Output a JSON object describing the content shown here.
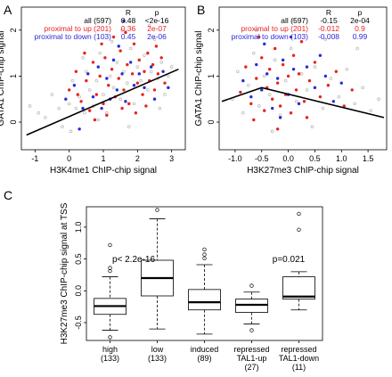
{
  "chart_data": [
    {
      "panel": "A",
      "type": "scatter",
      "xlabel": "H3K4me1 ChIP-chip signal",
      "ylabel": "GATA1 ChIP-chip signal",
      "xlim": [
        -1.4,
        3.4
      ],
      "ylim": [
        -0.6,
        2.5
      ],
      "xticks": [
        "-1",
        "0",
        "1",
        "2",
        "3"
      ],
      "yticks": [
        "0",
        "1",
        "2"
      ],
      "stats_header": {
        "r": "R",
        "p": "p"
      },
      "stats": [
        {
          "label": "all (597)",
          "r": "0.48",
          "p": "<2e-16",
          "color": "#000000"
        },
        {
          "label": "proximal to up (201)",
          "r": "0.36",
          "p": "2e-07",
          "color": "#e8231f"
        },
        {
          "label": "proximal to down (103)",
          "r": "0.45",
          "p": "2e-06",
          "color": "#2a2ad8"
        }
      ],
      "fit_line": {
        "x": [
          -1.25,
          3.2
        ],
        "y": [
          -0.28,
          1.15
        ]
      },
      "series": [
        {
          "label": "all",
          "color": "#bdbdbd",
          "points": [
            [
              -1.15,
              0.35
            ],
            [
              -0.9,
              0.2
            ],
            [
              -0.7,
              0.1
            ],
            [
              -0.5,
              0.6
            ],
            [
              -0.3,
              0.3
            ],
            [
              -0.2,
              -0.1
            ],
            [
              0.0,
              0.4
            ],
            [
              0.1,
              0.9
            ],
            [
              0.2,
              0.3
            ],
            [
              0.3,
              0.55
            ],
            [
              0.45,
              0.2
            ],
            [
              0.5,
              1.1
            ],
            [
              0.6,
              0.7
            ],
            [
              0.7,
              0.35
            ],
            [
              0.8,
              0.9
            ],
            [
              0.9,
              1.5
            ],
            [
              1.0,
              0.6
            ],
            [
              1.1,
              0.2
            ],
            [
              1.2,
              1.0
            ],
            [
              1.3,
              0.75
            ],
            [
              1.4,
              1.3
            ],
            [
              1.5,
              0.5
            ],
            [
              1.6,
              1.1
            ],
            [
              1.7,
              0.85
            ],
            [
              1.8,
              1.6
            ],
            [
              1.9,
              0.4
            ],
            [
              2.0,
              1.2
            ],
            [
              2.1,
              0.9
            ],
            [
              2.2,
              1.45
            ],
            [
              2.3,
              0.7
            ],
            [
              2.4,
              1.1
            ],
            [
              2.5,
              1.8
            ],
            [
              2.6,
              0.95
            ],
            [
              2.7,
              1.3
            ],
            [
              2.8,
              0.6
            ],
            [
              2.9,
              1.0
            ],
            [
              3.0,
              1.2
            ],
            [
              1.55,
              2.0
            ],
            [
              0.4,
              1.4
            ],
            [
              2.35,
              2.1
            ],
            [
              0.05,
              -0.2
            ],
            [
              1.75,
              -0.1
            ],
            [
              2.65,
              0.3
            ],
            [
              0.85,
              0.05
            ],
            [
              1.25,
              1.75
            ]
          ]
        },
        {
          "label": "proximal to up",
          "color": "#e8231f",
          "points": [
            [
              0.0,
              0.7
            ],
            [
              0.2,
              1.1
            ],
            [
              0.35,
              0.45
            ],
            [
              0.5,
              0.9
            ],
            [
              0.6,
              0.25
            ],
            [
              0.7,
              1.3
            ],
            [
              0.8,
              0.6
            ],
            [
              0.9,
              1.0
            ],
            [
              1.0,
              0.4
            ],
            [
              1.05,
              1.4
            ],
            [
              1.15,
              0.8
            ],
            [
              1.25,
              1.15
            ],
            [
              1.35,
              0.55
            ],
            [
              1.45,
              0.95
            ],
            [
              1.5,
              1.55
            ],
            [
              1.6,
              0.7
            ],
            [
              1.7,
              1.25
            ],
            [
              1.75,
              0.4
            ],
            [
              1.85,
              1.05
            ],
            [
              1.9,
              1.7
            ],
            [
              2.0,
              0.85
            ],
            [
              2.05,
              1.35
            ],
            [
              2.15,
              0.6
            ],
            [
              2.2,
              1.1
            ],
            [
              2.3,
              1.5
            ],
            [
              2.35,
              0.9
            ],
            [
              2.45,
              1.25
            ],
            [
              2.5,
              0.7
            ],
            [
              2.6,
              1.05
            ],
            [
              2.7,
              1.4
            ],
            [
              2.8,
              0.85
            ],
            [
              0.45,
              1.5
            ],
            [
              1.3,
              1.85
            ],
            [
              1.95,
              0.2
            ],
            [
              2.55,
              1.65
            ],
            [
              0.75,
              0.05
            ],
            [
              1.55,
              0.3
            ],
            [
              1.1,
              0.15
            ],
            [
              2.25,
              0.35
            ],
            [
              0.25,
              0.6
            ],
            [
              1.65,
              1.95
            ],
            [
              0.95,
              1.7
            ]
          ]
        },
        {
          "label": "proximal to down",
          "color": "#2a2ad8",
          "points": [
            [
              -0.1,
              0.5
            ],
            [
              0.15,
              0.8
            ],
            [
              0.4,
              0.3
            ],
            [
              0.55,
              1.05
            ],
            [
              0.7,
              0.55
            ],
            [
              0.85,
              1.2
            ],
            [
              0.95,
              0.3
            ],
            [
              1.1,
              0.95
            ],
            [
              1.2,
              0.5
            ],
            [
              1.3,
              1.35
            ],
            [
              1.4,
              0.7
            ],
            [
              1.55,
              1.05
            ],
            [
              1.65,
              0.45
            ],
            [
              1.8,
              1.3
            ],
            [
              1.9,
              0.8
            ],
            [
              2.05,
              1.05
            ],
            [
              2.2,
              0.75
            ],
            [
              2.4,
              1.2
            ],
            [
              2.5,
              0.5
            ],
            [
              2.75,
              1.1
            ],
            [
              2.9,
              0.75
            ],
            [
              1.6,
              2.2
            ],
            [
              0.3,
              -0.15
            ],
            [
              1.45,
              1.65
            ]
          ]
        }
      ]
    },
    {
      "panel": "B",
      "type": "scatter",
      "xlabel": "H3K27me3 ChIP-chip signal",
      "ylabel": "GATA1 ChIP-chip signal",
      "xlim": [
        -1.3,
        1.85
      ],
      "ylim": [
        -0.6,
        2.5
      ],
      "xticks": [
        "-1.0",
        "-0.5",
        "0.0",
        "0.5",
        "1.0",
        "1.5"
      ],
      "yticks": [
        "0",
        "1",
        "2"
      ],
      "stats_header": {
        "r": "R",
        "p": "p"
      },
      "stats": [
        {
          "label": "all (597)",
          "r": "-0.15",
          "p": "2e-04",
          "color": "#000000"
        },
        {
          "label": "proximal to up (201)",
          "r": "-0.012",
          "p": "0.9",
          "color": "#e8231f"
        },
        {
          "label": "proximal to down (103)",
          "r": "-0.008",
          "p": "0.99",
          "color": "#2a2ad8"
        }
      ],
      "fit_line": {
        "x": [
          -1.25,
          -0.5,
          1.8
        ],
        "y": [
          0.45,
          0.75,
          0.1
        ]
      },
      "series": [
        {
          "label": "all",
          "color": "#bdbdbd",
          "points": [
            [
              -1.05,
              0.5
            ],
            [
              -0.95,
              1.1
            ],
            [
              -0.85,
              0.2
            ],
            [
              -0.75,
              0.8
            ],
            [
              -0.65,
              1.5
            ],
            [
              -0.55,
              0.35
            ],
            [
              -0.45,
              1.0
            ],
            [
              -0.35,
              0.6
            ],
            [
              -0.25,
              1.35
            ],
            [
              -0.15,
              0.15
            ],
            [
              -0.05,
              0.9
            ],
            [
              0.05,
              1.6
            ],
            [
              0.15,
              0.45
            ],
            [
              0.25,
              1.05
            ],
            [
              0.35,
              0.7
            ],
            [
              0.5,
              1.2
            ],
            [
              0.65,
              0.3
            ],
            [
              0.8,
              0.95
            ],
            [
              0.95,
              0.55
            ],
            [
              1.1,
              1.15
            ],
            [
              1.25,
              0.4
            ],
            [
              1.4,
              0.75
            ],
            [
              1.55,
              0.25
            ],
            [
              1.7,
              0.5
            ],
            [
              -0.6,
              2.0
            ],
            [
              0.1,
              2.2
            ],
            [
              -0.3,
              -0.2
            ],
            [
              0.45,
              -0.1
            ],
            [
              1.3,
              1.6
            ],
            [
              0.7,
              1.8
            ]
          ]
        },
        {
          "label": "proximal to up",
          "color": "#e8231f",
          "points": [
            [
              -0.9,
              0.65
            ],
            [
              -0.8,
              1.2
            ],
            [
              -0.7,
              0.4
            ],
            [
              -0.6,
              0.95
            ],
            [
              -0.5,
              1.4
            ],
            [
              -0.45,
              0.25
            ],
            [
              -0.4,
              0.75
            ],
            [
              -0.35,
              1.15
            ],
            [
              -0.3,
              0.5
            ],
            [
              -0.25,
              1.6
            ],
            [
              -0.2,
              0.85
            ],
            [
              -0.15,
              0.35
            ],
            [
              -0.1,
              1.25
            ],
            [
              -0.05,
              0.6
            ],
            [
              0.0,
              1.0
            ],
            [
              0.05,
              0.2
            ],
            [
              0.1,
              1.45
            ],
            [
              0.15,
              0.7
            ],
            [
              0.2,
              1.05
            ],
            [
              0.3,
              0.45
            ],
            [
              0.4,
              0.9
            ],
            [
              0.5,
              1.3
            ],
            [
              0.6,
              0.55
            ],
            [
              0.75,
              0.8
            ],
            [
              0.9,
              1.1
            ],
            [
              1.05,
              0.35
            ],
            [
              1.2,
              0.7
            ],
            [
              -0.55,
              1.85
            ],
            [
              -0.2,
              -0.15
            ],
            [
              0.25,
              1.75
            ],
            [
              -0.65,
              0.05
            ],
            [
              0.35,
              0.1
            ]
          ]
        },
        {
          "label": "proximal to down",
          "color": "#2a2ad8",
          "points": [
            [
              -0.85,
              0.9
            ],
            [
              -0.7,
              0.55
            ],
            [
              -0.6,
              1.25
            ],
            [
              -0.5,
              0.7
            ],
            [
              -0.4,
              1.05
            ],
            [
              -0.3,
              0.3
            ],
            [
              -0.2,
              0.95
            ],
            [
              -0.1,
              1.35
            ],
            [
              0.0,
              0.6
            ],
            [
              0.1,
              1.15
            ],
            [
              0.2,
              0.4
            ],
            [
              0.35,
              1.2
            ],
            [
              0.5,
              0.75
            ],
            [
              0.7,
              1.0
            ],
            [
              0.85,
              0.45
            ],
            [
              1.0,
              0.85
            ],
            [
              -0.45,
              1.7
            ],
            [
              0.05,
              1.85
            ],
            [
              -0.15,
              0.1
            ],
            [
              0.6,
              1.45
            ]
          ]
        }
      ]
    },
    {
      "panel": "C",
      "type": "box",
      "ylabel": "H3K27me3 ChIP-chip signal at TSS",
      "ylim": [
        -0.78,
        1.32
      ],
      "yticks": [
        "-0.5",
        "0.0",
        "0.5",
        "1.0"
      ],
      "annotations": [
        {
          "text": "p< 2.2e-16"
        },
        {
          "text": "p=0.021"
        }
      ],
      "categories": [
        {
          "label": "high",
          "n": "(133)",
          "min": -0.62,
          "q1": -0.37,
          "median": -0.24,
          "q3": -0.12,
          "max": 0.22,
          "outliers": [
            0.31,
            0.36,
            0.72,
            -0.73
          ]
        },
        {
          "label": "low",
          "n": "(133)",
          "min": -0.6,
          "q1": -0.08,
          "median": 0.2,
          "q3": 0.48,
          "max": 1.13,
          "outliers": [
            1.27
          ]
        },
        {
          "label": "induced",
          "n": "(89)",
          "min": -0.68,
          "q1": -0.3,
          "median": -0.18,
          "q3": 0.02,
          "max": 0.41,
          "outliers": [
            0.51,
            0.57,
            0.65
          ]
        },
        {
          "label": "repressed",
          "sublabel": "TAL1-up",
          "n": "(27)",
          "min": -0.52,
          "q1": -0.34,
          "median": -0.22,
          "q3": -0.13,
          "max": -0.02,
          "outliers": [
            0.08,
            -0.62
          ]
        },
        {
          "label": "repressed",
          "sublabel": "TAL1-down",
          "n": "(11)",
          "min": -0.3,
          "q1": -0.13,
          "median": -0.09,
          "q3": 0.22,
          "max": 0.3,
          "outliers": [
            0.96,
            1.21
          ]
        }
      ]
    }
  ],
  "panel_labels": [
    "A",
    "B",
    "C"
  ]
}
